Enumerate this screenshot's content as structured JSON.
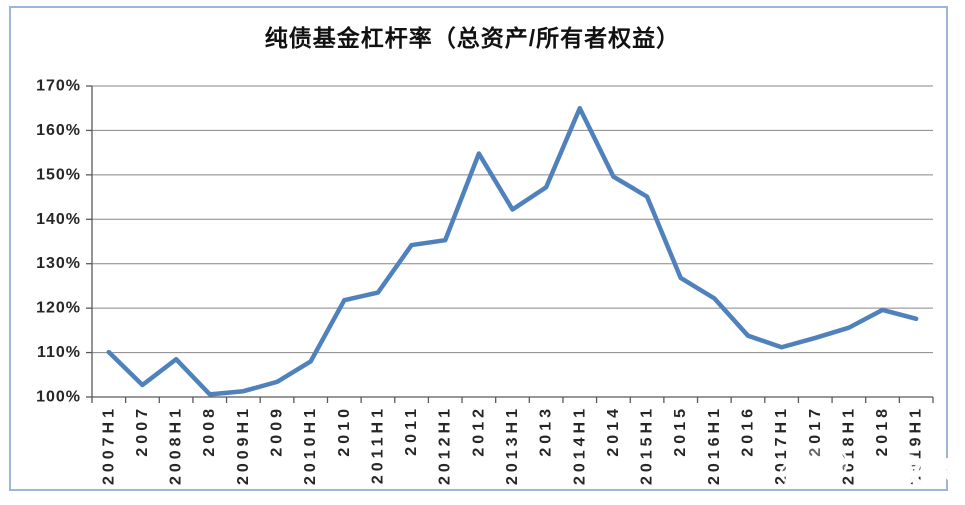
{
  "chart_data": {
    "type": "line",
    "title": "纯债基金杠杆率（总资产/所有者权益）",
    "categories": [
      "2007H1",
      "2007",
      "2008H1",
      "2008",
      "2009H1",
      "2009",
      "2010H1",
      "2010",
      "2011H1",
      "2011",
      "2012H1",
      "2012",
      "2013H1",
      "2013",
      "2014H1",
      "2014",
      "2015H1",
      "2015",
      "2016H1",
      "2016",
      "2017H1",
      "2017",
      "2018H1",
      "2018",
      "2019H1"
    ],
    "series": [
      {
        "name": "纯债基金杠杆率",
        "values": [
          110.1,
          102.7,
          108.5,
          100.6,
          101.3,
          103.4,
          108.0,
          121.8,
          123.5,
          134.2,
          135.3,
          154.8,
          142.2,
          147.2,
          165.0,
          149.6,
          145.1,
          126.8,
          122.2,
          113.8,
          111.2,
          113.3,
          115.6,
          119.6,
          117.6
        ]
      }
    ],
    "ylim": [
      100,
      170
    ],
    "ytick_step": 10,
    "ytick_labels": [
      "100%",
      "110%",
      "120%",
      "130%",
      "140%",
      "150%",
      "160%",
      "170%"
    ],
    "x_label_rotation": -90,
    "grid": "horizontal",
    "legend": "none",
    "line_color": "#4f81bd",
    "gridline_color": "#878787",
    "axis_color": "#5a5a5a",
    "label_color": "#262626"
  },
  "frame": {
    "border_color": "#9db5d7"
  },
  "watermark": {
    "text": "固收杂记",
    "icon": "wechat-logo-icon"
  }
}
